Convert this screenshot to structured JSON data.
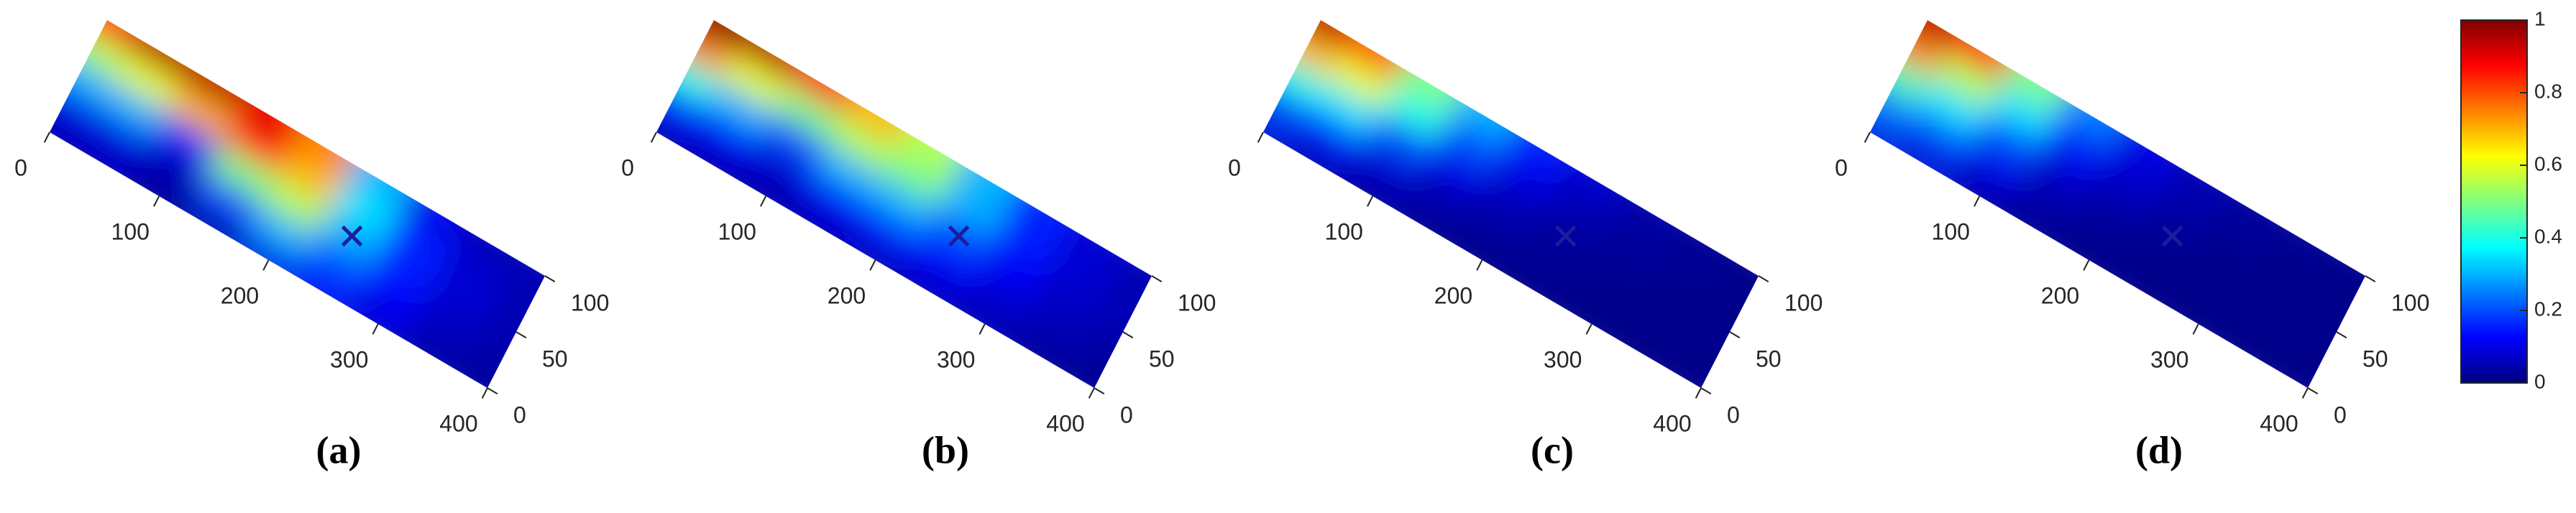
{
  "chart_data": [
    {
      "type": "heatmap",
      "title": "(a)",
      "x": [
        0,
        50,
        100,
        150,
        200,
        250,
        300,
        350,
        400
      ],
      "y": [
        0,
        25,
        50,
        75,
        100
      ],
      "values": [
        [
          0.05,
          0.05,
          0.03,
          0.05,
          0.1,
          0.12,
          0.08,
          0.04,
          0.03
        ],
        [
          0.1,
          0.1,
          0.05,
          0.2,
          0.3,
          0.2,
          0.12,
          0.06,
          0.04
        ],
        [
          0.3,
          0.3,
          0.15,
          0.5,
          0.55,
          0.3,
          0.15,
          0.08,
          0.05
        ],
        [
          0.55,
          0.6,
          0.7,
          0.85,
          0.7,
          0.35,
          0.15,
          0.08,
          0.05
        ],
        [
          0.85,
          0.95,
          0.95,
          0.9,
          0.75,
          0.3,
          0.1,
          0.05,
          0.05
        ]
      ],
      "xlim": [
        0,
        400
      ],
      "ylim": [
        0,
        100
      ],
      "xticks": [
        0,
        100,
        200,
        300,
        400
      ],
      "yticks": [
        0,
        50,
        100
      ],
      "marker": {
        "x": 250,
        "y": 50,
        "color": "#1c1c9c"
      }
    },
    {
      "type": "heatmap",
      "title": "(b)",
      "x": [
        0,
        50,
        100,
        150,
        200,
        250,
        300,
        350,
        400
      ],
      "y": [
        0,
        25,
        50,
        75,
        100
      ],
      "values": [
        [
          0.05,
          0.05,
          0.04,
          0.05,
          0.06,
          0.06,
          0.05,
          0.03,
          0.02
        ],
        [
          0.15,
          0.12,
          0.08,
          0.12,
          0.15,
          0.12,
          0.08,
          0.05,
          0.03
        ],
        [
          0.4,
          0.3,
          0.2,
          0.3,
          0.3,
          0.2,
          0.12,
          0.07,
          0.05
        ],
        [
          0.75,
          0.6,
          0.5,
          0.55,
          0.5,
          0.3,
          0.15,
          0.08,
          0.05
        ],
        [
          1,
          0.95,
          0.85,
          0.7,
          0.55,
          0.3,
          0.15,
          0.08,
          0.05
        ]
      ],
      "xlim": [
        0,
        400
      ],
      "ylim": [
        0,
        100
      ],
      "xticks": [
        0,
        100,
        200,
        300,
        400
      ],
      "yticks": [
        0,
        50,
        100
      ],
      "marker": {
        "x": 250,
        "y": 50,
        "color": "#1c1c9c"
      }
    },
    {
      "type": "heatmap",
      "title": "(c)",
      "x": [
        0,
        50,
        100,
        150,
        200,
        250,
        300,
        350,
        400
      ],
      "y": [
        0,
        25,
        50,
        75,
        100
      ],
      "values": [
        [
          0.08,
          0.05,
          0.03,
          0.02,
          0.01,
          0.01,
          0.01,
          0.01,
          0.01
        ],
        [
          0.2,
          0.15,
          0.08,
          0.04,
          0.03,
          0.02,
          0.01,
          0.01,
          0.01
        ],
        [
          0.4,
          0.35,
          0.2,
          0.1,
          0.05,
          0.03,
          0.02,
          0.01,
          0.01
        ],
        [
          0.7,
          0.6,
          0.4,
          0.2,
          0.1,
          0.05,
          0.03,
          0.02,
          0.01
        ],
        [
          0.95,
          0.8,
          0.5,
          0.3,
          0.15,
          0.08,
          0.04,
          0.02,
          0.01
        ]
      ],
      "xlim": [
        0,
        400
      ],
      "ylim": [
        0,
        100
      ],
      "xticks": [
        0,
        100,
        200,
        300,
        400
      ],
      "yticks": [
        0,
        50,
        100
      ],
      "marker": {
        "x": 250,
        "y": 50,
        "color": "#1c1c9c"
      }
    },
    {
      "type": "heatmap",
      "title": "(d)",
      "x": [
        0,
        50,
        100,
        150,
        200,
        250,
        300,
        350,
        400
      ],
      "y": [
        0,
        25,
        50,
        75,
        100
      ],
      "values": [
        [
          0.1,
          0.08,
          0.04,
          0.02,
          0.01,
          0.01,
          0.01,
          0.01,
          0.01
        ],
        [
          0.25,
          0.2,
          0.1,
          0.04,
          0.02,
          0.01,
          0.01,
          0.01,
          0.01
        ],
        [
          0.45,
          0.35,
          0.2,
          0.08,
          0.04,
          0.02,
          0.01,
          0.01,
          0.01
        ],
        [
          0.75,
          0.55,
          0.35,
          0.15,
          0.08,
          0.04,
          0.02,
          0.01,
          0.01
        ],
        [
          0.95,
          0.85,
          0.5,
          0.25,
          0.1,
          0.05,
          0.03,
          0.02,
          0.01
        ]
      ],
      "xlim": [
        0,
        400
      ],
      "ylim": [
        0,
        100
      ],
      "xticks": [
        0,
        100,
        200,
        300,
        400
      ],
      "yticks": [
        0,
        50,
        100
      ],
      "marker": {
        "x": 250,
        "y": 50,
        "color": "#1c1c9c"
      }
    }
  ],
  "colorbar": {
    "clim": [
      0,
      1
    ],
    "ticks": [
      0,
      0.2,
      0.4,
      0.6,
      0.8,
      1
    ],
    "colormap": "jet"
  }
}
